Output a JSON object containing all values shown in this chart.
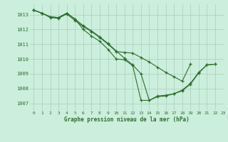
{
  "title": "Graphe pression niveau de la mer (hPa)",
  "background_color": "#cceedd",
  "grid_color": "#aaccbb",
  "line_color": "#2d6e2d",
  "xlim": [
    -0.5,
    23
  ],
  "ylim": [
    1006.5,
    1013.7
  ],
  "yticks": [
    1007,
    1008,
    1009,
    1010,
    1011,
    1012,
    1013
  ],
  "xticks": [
    0,
    1,
    2,
    3,
    4,
    5,
    6,
    7,
    8,
    9,
    10,
    11,
    12,
    13,
    14,
    15,
    16,
    17,
    18,
    19,
    20,
    21,
    22,
    23
  ],
  "series": [
    [
      1013.3,
      1013.1,
      1012.8,
      1012.75,
      1013.05,
      1012.6,
      1012.2,
      1011.85,
      1011.45,
      1011.0,
      1010.5,
      1010.45,
      1010.4,
      1010.1,
      1009.8,
      1009.45,
      1009.1,
      1008.8,
      1008.5,
      1009.65,
      null,
      null,
      null,
      null
    ],
    [
      1013.3,
      1013.1,
      1012.85,
      1012.8,
      1013.1,
      1012.7,
      1012.25,
      1011.9,
      1011.5,
      1011.05,
      1010.55,
      1010.05,
      1009.6,
      1009.0,
      1007.2,
      1007.45,
      1007.5,
      1007.65,
      1007.85,
      1008.3,
      1009.05,
      1009.6,
      1009.65,
      null
    ],
    [
      1013.3,
      1013.1,
      1012.85,
      1012.8,
      1013.1,
      1012.7,
      1012.0,
      1011.55,
      1011.2,
      1010.65,
      1010.0,
      1009.95,
      1009.55,
      1007.2,
      1007.2,
      1007.5,
      1007.55,
      1007.65,
      1007.9,
      1008.35,
      1009.1,
      1009.6,
      1009.65,
      null
    ]
  ]
}
